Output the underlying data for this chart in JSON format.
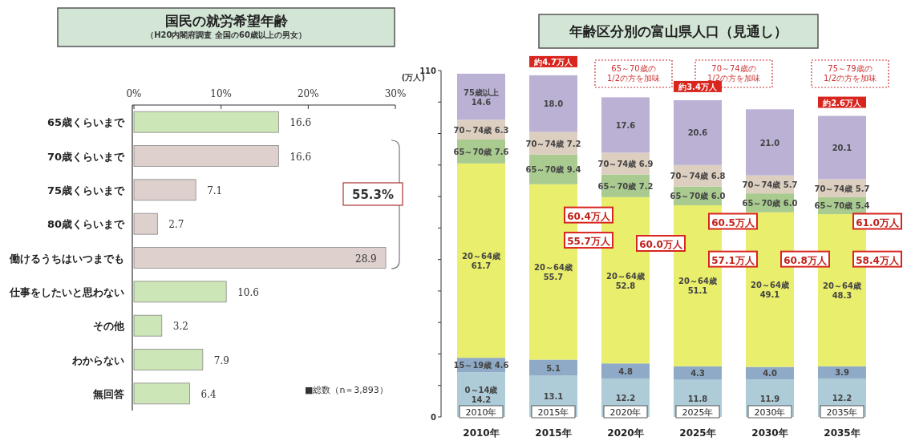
{
  "chart_data": [
    {
      "type": "bar",
      "orientation": "horizontal",
      "title": "国民の就労希望年齢",
      "subtitle": "（H20内閣府調査 全国の60歳以上の男女）",
      "categories": [
        "65歳くらいまで",
        "70歳くらいまで",
        "75歳くらいまで",
        "80歳くらいまで",
        "働けるうちはいつまでも",
        "仕事をしたいと思わない",
        "その他",
        "わからない",
        "無回答"
      ],
      "values": [
        16.6,
        16.6,
        7.1,
        2.7,
        28.9,
        10.6,
        3.2,
        7.9,
        6.4
      ],
      "colors": [
        "#cde6b8",
        "#ddd0cd",
        "#ddd0cd",
        "#ddd0cd",
        "#ddd0cd",
        "#cde6b8",
        "#cde6b8",
        "#cde6b8",
        "#cde6b8"
      ],
      "xlim": [
        0,
        30
      ],
      "xticks": [
        {
          "value": 0,
          "label": "0%"
        },
        {
          "value": 10,
          "label": "10%"
        },
        {
          "value": 20,
          "label": "20%"
        },
        {
          "value": 30,
          "label": "30%"
        }
      ],
      "data_labels": true,
      "grid": false,
      "annotations": [
        "55.3%",
        "■総数（n＝3,893）"
      ]
    },
    {
      "type": "bar",
      "stacked": true,
      "title": "年齢区分別の富山県人口（見通し）",
      "ylabel": "(万人)",
      "categories": [
        "2010年",
        "2015年",
        "2020年",
        "2025年",
        "2030年",
        "2035年"
      ],
      "ylim": [
        0,
        110
      ],
      "yticks": [
        0,
        {
          "value": 10,
          "label": null
        },
        {
          "value": 20,
          "label": null
        },
        {
          "value": 30,
          "label": null
        },
        {
          "value": 40,
          "label": null
        },
        {
          "value": 50,
          "label": null
        },
        {
          "value": 60,
          "label": null
        },
        {
          "value": 70,
          "label": null
        },
        {
          "value": 80,
          "label": null
        },
        {
          "value": 90,
          "label": null
        },
        {
          "value": 100,
          "label": null
        },
        110
      ],
      "grid": false,
      "series": [
        {
          "color": "#aecbd8",
          "values": [
            14.2,
            13.1,
            12.2,
            11.8,
            11.9,
            12.2
          ],
          "value_labels": [
            "0～14歳\n14.2",
            "13.1",
            "12.2",
            "11.8",
            "11.9",
            "12.2"
          ]
        },
        {
          "color": "#8faac6",
          "values": [
            4.6,
            5.1,
            4.8,
            4.3,
            4.0,
            3.9
          ],
          "value_labels": [
            "15～19歳 4.6",
            "5.1",
            "4.8",
            "4.3",
            "4.0",
            "3.9"
          ]
        },
        {
          "color": "#e9ee6c",
          "values": [
            61.7,
            55.7,
            52.8,
            51.1,
            49.1,
            48.3
          ],
          "value_labels": [
            "20～64歳\n61.7",
            "20～64歳\n55.7",
            "20～64歳\n52.8",
            "20～64歳\n51.1",
            "20～64歳\n49.1",
            "20～64歳\n48.3"
          ]
        },
        {
          "color": "#a9cb90",
          "values": [
            7.6,
            9.4,
            7.2,
            6.0,
            6.0,
            5.4
          ],
          "value_labels": [
            "65～70歳 7.6",
            "65～70歳 9.4",
            "65～70歳 7.2",
            "65～70歳 6.0",
            "65～70歳 6.0",
            "65～70歳 5.4"
          ]
        },
        {
          "color": "#ddcfc0",
          "values": [
            6.3,
            7.2,
            6.9,
            6.8,
            5.7,
            5.7
          ],
          "value_labels": [
            "70～74歳 6.3",
            "70～74歳 7.2",
            "70～74歳 6.9",
            "70～74歳 6.8",
            "70～74歳 5.7",
            "70～74歳 5.7"
          ]
        },
        {
          "color": "#bbb1d5",
          "values": [
            14.6,
            18.0,
            17.6,
            20.6,
            21.0,
            20.1
          ],
          "value_labels": [
            "75歳以上\n14.6",
            "18.0",
            "17.6",
            "20.6",
            "21.0",
            "20.1"
          ]
        }
      ],
      "annotations": [
        "65～70歳の\n1/2の方を加味",
        "70～74歳の\n1/2の方を加味",
        "75～79歳の\n1/2の方を加味",
        "2010年",
        "2015年",
        "2020年",
        "2025年",
        "2030年",
        "2035年",
        "60.4万人",
        "55.7万人",
        "約4.7万人",
        "60.0万人",
        "60.5万人",
        "57.1万人",
        "約3.4万人",
        "60.8万人",
        "61.0万人",
        "58.4万人",
        "約2.6万人"
      ]
    }
  ]
}
